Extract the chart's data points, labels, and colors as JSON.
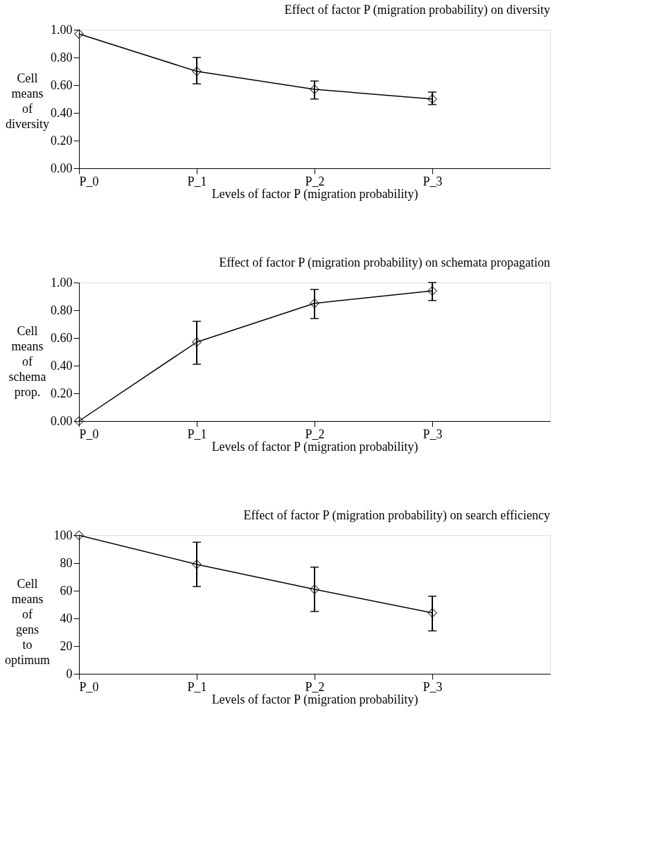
{
  "chart_data": [
    {
      "type": "line",
      "title": "Effect of factor P (migration probability) on diversity",
      "xlabel": "Levels of factor P (migration probability)",
      "ylabel": "Cell means of diversity",
      "categories": [
        "P_0",
        "P_1",
        "P_2",
        "P_3",
        null
      ],
      "ylim": [
        0,
        1
      ],
      "yticks": [
        {
          "value": 0,
          "label": "0.00"
        },
        {
          "value": 0.2,
          "label": "0.20"
        },
        {
          "value": 0.4,
          "label": "0.40"
        },
        {
          "value": 0.6,
          "label": "0.60"
        },
        {
          "value": 0.8,
          "label": "0.80"
        },
        {
          "value": 1,
          "label": "1.00"
        }
      ],
      "marker": "diamond",
      "line_style": "solid",
      "grid": false,
      "series": [
        {
          "color": "#000000",
          "values": [
            0.97,
            0.7,
            0.57,
            0.5,
            null
          ],
          "errors": [
            null,
            [
              0.61,
              0.8
            ],
            [
              0.5,
              0.63
            ],
            [
              0.46,
              0.55
            ],
            null
          ]
        }
      ]
    },
    {
      "type": "line",
      "title": "Effect of factor P (migration probability) on schemata propagation",
      "xlabel": "Levels of factor P (migration probability)",
      "ylabel": "Cell means of schema prop.",
      "categories": [
        "P_0",
        "P_1",
        "P_2",
        "P_3",
        null
      ],
      "ylim": [
        0,
        1
      ],
      "yticks": [
        {
          "value": 0,
          "label": "0.00"
        },
        {
          "value": 0.2,
          "label": "0.20"
        },
        {
          "value": 0.4,
          "label": "0.40"
        },
        {
          "value": 0.6,
          "label": "0.60"
        },
        {
          "value": 0.8,
          "label": "0.80"
        },
        {
          "value": 1,
          "label": "1.00"
        }
      ],
      "marker": "diamond",
      "line_style": "solid",
      "grid": false,
      "series": [
        {
          "color": "#000000",
          "values": [
            0.0,
            0.57,
            0.85,
            0.94,
            null
          ],
          "errors": [
            null,
            [
              0.41,
              0.72
            ],
            [
              0.74,
              0.95
            ],
            [
              0.87,
              1.0
            ],
            null
          ]
        }
      ]
    },
    {
      "type": "line",
      "title": "Effect of factor P (migration probability) on search efficiency",
      "xlabel": "Levels of factor P (migration probability)",
      "ylabel": "Cell means of gens to optimum",
      "categories": [
        "P_0",
        "P_1",
        "P_2",
        "P_3",
        null
      ],
      "ylim": [
        0,
        100
      ],
      "yticks": [
        0,
        20,
        40,
        60,
        80,
        100
      ],
      "marker": "diamond",
      "line_style": "solid",
      "grid": false,
      "series": [
        {
          "color": "#000000",
          "values": [
            100,
            79,
            61,
            44,
            null
          ],
          "errors": [
            null,
            [
              63,
              95
            ],
            [
              45,
              77
            ],
            [
              31,
              56
            ],
            null
          ]
        }
      ]
    }
  ]
}
